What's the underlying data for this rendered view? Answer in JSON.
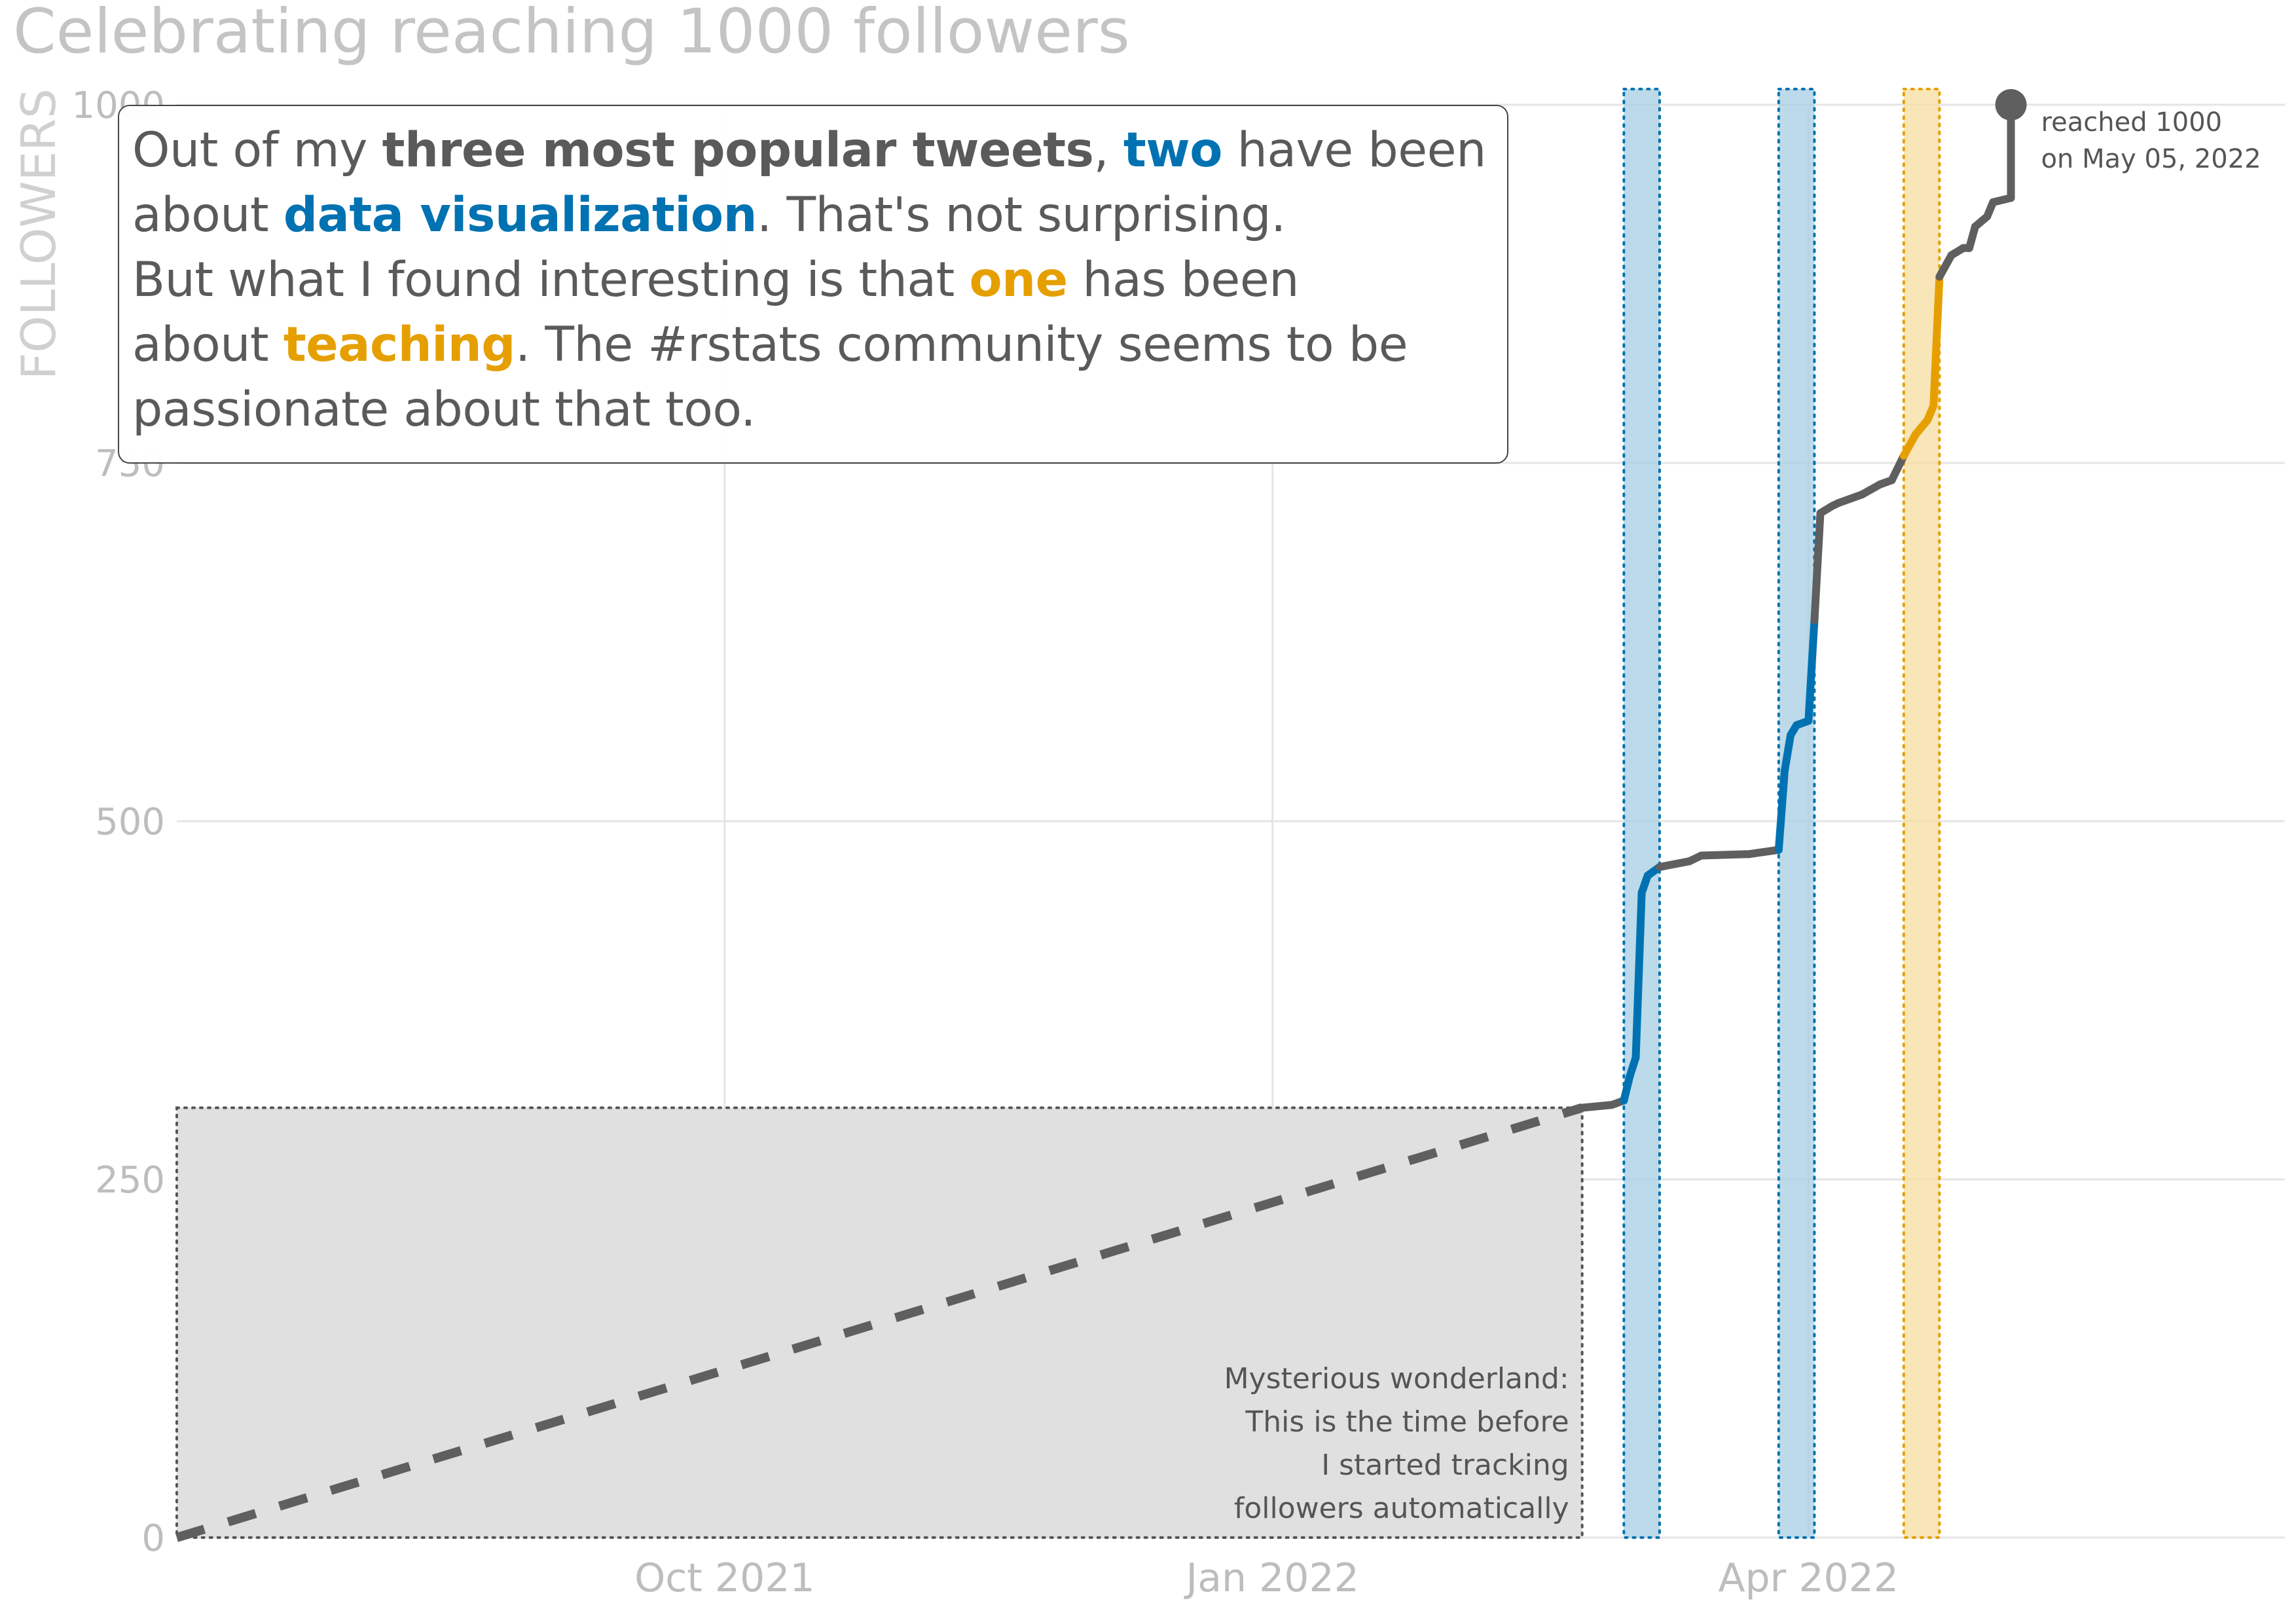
{
  "chart_data": {
    "type": "line",
    "title": "Celebrating reaching 1000 followers",
    "xlabel": "",
    "ylabel": "FOLLOWERS",
    "ylim": [
      0,
      1000
    ],
    "xlim": [
      "2021-07-01",
      "2022-06-20"
    ],
    "y_ticks": [
      0,
      250,
      500,
      750,
      1000
    ],
    "y_tick_labels": [
      "0",
      "250",
      "500",
      "750",
      "1000"
    ],
    "x_ticks": [
      "2021-10-01",
      "2022-01-01",
      "2022-04-01"
    ],
    "x_tick_labels": [
      "Oct 2021",
      "Jan 2022",
      "Apr 2022"
    ],
    "grid": true,
    "colors": {
      "line": "#5f5f5f",
      "data_viz": "#0072b2",
      "teaching": "#e69f00",
      "band_blue": "#a6cee3",
      "band_orange": "#f5dca0",
      "shade": "#e0e0e0",
      "grid": "#e5e5e5",
      "axis_text": "#bdbdbd"
    },
    "series": [
      {
        "type": "dashed",
        "points": [
          [
            "2021-07-01",
            0
          ],
          [
            "2022-02-22",
            300
          ]
        ]
      },
      {
        "type": "solid",
        "points": [
          [
            "2022-02-22",
            300
          ],
          [
            "2022-02-27",
            302
          ],
          [
            "2022-03-01",
            305
          ],
          [
            "2022-03-02",
            322
          ],
          [
            "2022-03-03",
            335
          ],
          [
            "2022-03-04",
            450
          ],
          [
            "2022-03-05",
            462
          ],
          [
            "2022-03-07",
            468
          ],
          [
            "2022-03-12",
            472
          ],
          [
            "2022-03-14",
            476
          ],
          [
            "2022-03-22",
            477
          ],
          [
            "2022-03-27",
            480
          ],
          [
            "2022-03-28",
            535
          ],
          [
            "2022-03-29",
            560
          ],
          [
            "2022-03-30",
            567
          ],
          [
            "2022-04-01",
            570
          ],
          [
            "2022-04-02",
            640
          ],
          [
            "2022-04-03",
            715
          ],
          [
            "2022-04-05",
            720
          ],
          [
            "2022-04-06",
            722
          ],
          [
            "2022-04-10",
            728
          ],
          [
            "2022-04-13",
            735
          ],
          [
            "2022-04-15",
            738
          ],
          [
            "2022-04-17",
            755
          ],
          [
            "2022-04-19",
            770
          ],
          [
            "2022-04-21",
            780
          ],
          [
            "2022-04-22",
            790
          ],
          [
            "2022-04-23",
            880
          ],
          [
            "2022-04-25",
            895
          ],
          [
            "2022-04-27",
            900
          ],
          [
            "2022-04-28",
            900
          ],
          [
            "2022-04-29",
            915
          ],
          [
            "2022-05-01",
            922
          ],
          [
            "2022-05-02",
            932
          ],
          [
            "2022-05-05",
            935
          ],
          [
            "2022-05-05",
            1000
          ]
        ]
      }
    ],
    "highlights": [
      {
        "category": "data visualization",
        "start": "2022-03-01",
        "end": "2022-03-07"
      },
      {
        "category": "data visualization",
        "start": "2022-03-27",
        "end": "2022-04-02"
      },
      {
        "category": "teaching",
        "start": "2022-04-17",
        "end": "2022-04-23"
      }
    ],
    "shaded_region": {
      "start": "2021-07-01",
      "end": "2022-02-22",
      "ymax": 300
    },
    "annotations": {
      "shaded_lines": [
        "Mysterious wonderland:",
        "This is the time before",
        "I started tracking",
        "followers automatically"
      ],
      "endpoint_lines": [
        "reached 1000",
        "on May 05, 2022"
      ],
      "endpoint": {
        "x": "2022-05-05",
        "y": 1000
      }
    }
  },
  "callout": {
    "s1": "Out of my ",
    "s2": "three most popular tweets",
    "s3": ", ",
    "s4": "two",
    "s5": " have been",
    "s6": "about ",
    "s7": "data visualization",
    "s8": ". That's not surprising.",
    "s9": "But what I found interesting is that ",
    "s10": "one",
    "s11": " has been",
    "s12": "about ",
    "s13": "teaching",
    "s14": ". The #rstats community seems to be",
    "s15": "passionate about that too."
  }
}
